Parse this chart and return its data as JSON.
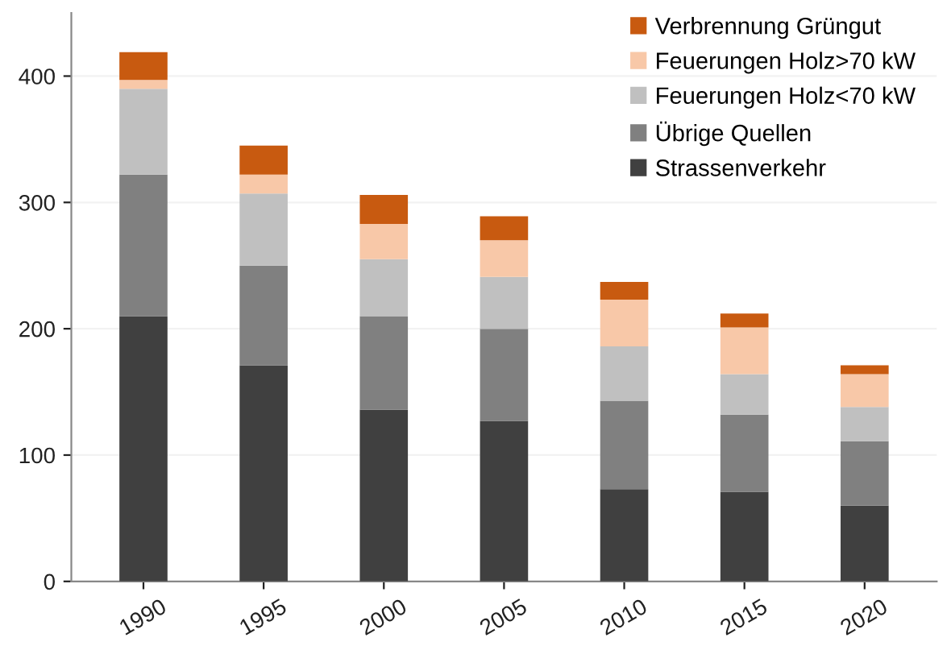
{
  "chart_data": {
    "type": "bar",
    "stacked": true,
    "categories": [
      "1990",
      "1995",
      "2000",
      "2005",
      "2010",
      "2015",
      "2020"
    ],
    "series": [
      {
        "name": "Strassenverkehr",
        "color": "#404040",
        "values": [
          210,
          171,
          136,
          127,
          73,
          71,
          60
        ]
      },
      {
        "name": "Übrige Quellen",
        "color": "#808080",
        "values": [
          112,
          79,
          74,
          73,
          70,
          61,
          51
        ]
      },
      {
        "name": "Feuerungen Holz<70 kW",
        "color": "#c0c0c0",
        "values": [
          68,
          57,
          45,
          41,
          43,
          32,
          27
        ]
      },
      {
        "name": "Feuerungen Holz>70 kW",
        "color": "#f8c8a8",
        "values": [
          7,
          15,
          28,
          29,
          37,
          37,
          26
        ]
      },
      {
        "name": "Verbrennung Grüngut",
        "color": "#c85a10",
        "values": [
          22,
          23,
          23,
          19,
          14,
          11,
          7
        ]
      }
    ],
    "ylim": [
      0,
      450
    ],
    "yticks": [
      0,
      100,
      200,
      300,
      400
    ],
    "grid": "y",
    "legend": "top right"
  }
}
